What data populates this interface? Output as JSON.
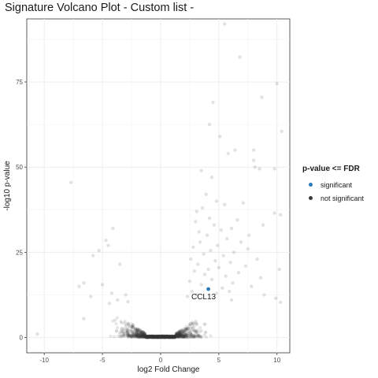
{
  "chart_data": {
    "type": "scatter",
    "title": "Signature Volcano Plot - Custom list -",
    "xlabel": "log2 Fold Change",
    "ylabel": "-log10 p-value",
    "xlim": [
      -11.5,
      11.1
    ],
    "ylim": [
      -4.5,
      93.5
    ],
    "xticks": [
      -10,
      -5,
      0,
      5,
      10
    ],
    "xtick_labels": [
      "-10",
      "-5",
      "0",
      "5",
      "10"
    ],
    "yticks": [
      0,
      25,
      50,
      75
    ],
    "ytick_labels": [
      "0",
      "25",
      "50",
      "75"
    ],
    "grid": true,
    "legend": {
      "title": "p-value <= FDR",
      "placement": "right",
      "entries": [
        {
          "label": "significant",
          "color": "#2b7bba"
        },
        {
          "label": "not significant",
          "color": "#3a3a3a"
        }
      ]
    },
    "series": [
      {
        "name": "significant",
        "color": "#2b7bba",
        "points": [
          {
            "x": 4.1,
            "y": 14.2,
            "label": "CCL13"
          }
        ]
      },
      {
        "name": "not significant",
        "color": "#3a3a3a",
        "points": [
          {
            "x": 5.5,
            "y": 92
          },
          {
            "x": 6.8,
            "y": 82.3
          },
          {
            "x": 10.0,
            "y": 74.5
          },
          {
            "x": 8.7,
            "y": 70.5
          },
          {
            "x": 4.5,
            "y": 69
          },
          {
            "x": 4.2,
            "y": 62.5
          },
          {
            "x": 10.4,
            "y": 60.5
          },
          {
            "x": 5.1,
            "y": 59
          },
          {
            "x": 8.0,
            "y": 55
          },
          {
            "x": 6.4,
            "y": 55
          },
          {
            "x": 5.8,
            "y": 54
          },
          {
            "x": 8.0,
            "y": 52
          },
          {
            "x": 8.1,
            "y": 50
          },
          {
            "x": 8.5,
            "y": 49.5
          },
          {
            "x": 9.8,
            "y": 49.5
          },
          {
            "x": 3.5,
            "y": 49
          },
          {
            "x": 4.4,
            "y": 47
          },
          {
            "x": -7.7,
            "y": 45.5
          },
          {
            "x": 3.9,
            "y": 42
          },
          {
            "x": 4.8,
            "y": 40
          },
          {
            "x": 7.1,
            "y": 39.5
          },
          {
            "x": 5.5,
            "y": 39
          },
          {
            "x": 3.6,
            "y": 38
          },
          {
            "x": 3.1,
            "y": 37
          },
          {
            "x": 9.8,
            "y": 36.5
          },
          {
            "x": 10.3,
            "y": 36
          },
          {
            "x": 4.2,
            "y": 35
          },
          {
            "x": 6.6,
            "y": 34.5
          },
          {
            "x": 3.0,
            "y": 34
          },
          {
            "x": 8.8,
            "y": 33
          },
          {
            "x": 4.6,
            "y": 33
          },
          {
            "x": 6.1,
            "y": 32
          },
          {
            "x": 5.2,
            "y": 31.5
          },
          {
            "x": 3.3,
            "y": 31
          },
          {
            "x": 7.6,
            "y": 30
          },
          {
            "x": 4.0,
            "y": 30
          },
          {
            "x": 5.7,
            "y": 29
          },
          {
            "x": 6.9,
            "y": 28
          },
          {
            "x": 3.4,
            "y": 28
          },
          {
            "x": 4.9,
            "y": 27
          },
          {
            "x": 2.8,
            "y": 26.5
          },
          {
            "x": 7.5,
            "y": 26
          },
          {
            "x": 4.3,
            "y": 25.5
          },
          {
            "x": 6.3,
            "y": 25
          },
          {
            "x": 3.7,
            "y": 24.5
          },
          {
            "x": 5.4,
            "y": 24
          },
          {
            "x": 8.3,
            "y": 23
          },
          {
            "x": 2.6,
            "y": 23
          },
          {
            "x": 4.7,
            "y": 22.5
          },
          {
            "x": 6.0,
            "y": 22
          },
          {
            "x": 3.2,
            "y": 21.5
          },
          {
            "x": 7.3,
            "y": 21
          },
          {
            "x": 5.0,
            "y": 20.5
          },
          {
            "x": 4.1,
            "y": 20
          },
          {
            "x": 10.2,
            "y": 20
          },
          {
            "x": 2.9,
            "y": 19.5
          },
          {
            "x": 6.7,
            "y": 19
          },
          {
            "x": 3.8,
            "y": 18.5
          },
          {
            "x": 5.6,
            "y": 18
          },
          {
            "x": 8.6,
            "y": 17.5
          },
          {
            "x": 4.4,
            "y": 17
          },
          {
            "x": 2.5,
            "y": 16.5
          },
          {
            "x": 6.2,
            "y": 16
          },
          {
            "x": 3.5,
            "y": 15.5
          },
          {
            "x": 7.8,
            "y": 15
          },
          {
            "x": 5.3,
            "y": 14.5
          },
          {
            "x": 2.7,
            "y": 13.5
          },
          {
            "x": 4.8,
            "y": 13
          },
          {
            "x": 3.1,
            "y": 12.5
          },
          {
            "x": 9.9,
            "y": 11.5
          },
          {
            "x": 10.3,
            "y": 10.3
          },
          {
            "x": 6.1,
            "y": 11
          },
          {
            "x": 2.3,
            "y": 12
          },
          {
            "x": 8.9,
            "y": 12.5
          },
          {
            "x": 5.9,
            "y": 13.5
          },
          {
            "x": -4.1,
            "y": 32
          },
          {
            "x": -4.7,
            "y": 28.5
          },
          {
            "x": -4.5,
            "y": 27
          },
          {
            "x": -5.3,
            "y": 25.5
          },
          {
            "x": -5.8,
            "y": 24
          },
          {
            "x": -3.5,
            "y": 21.5
          },
          {
            "x": -6.6,
            "y": 16
          },
          {
            "x": -5.0,
            "y": 15.5
          },
          {
            "x": -7.0,
            "y": 15
          },
          {
            "x": -4.2,
            "y": 13
          },
          {
            "x": -3.0,
            "y": 12.5
          },
          {
            "x": -6.0,
            "y": 12
          },
          {
            "x": -3.7,
            "y": 11
          },
          {
            "x": -2.8,
            "y": 10.5
          },
          {
            "x": -4.4,
            "y": 10
          },
          {
            "x": -6.6,
            "y": 5.5
          },
          {
            "x": -10.6,
            "y": 1
          }
        ],
        "cloud": {
          "count": 1400,
          "x_range": [
            -5.5,
            5.5
          ],
          "note": "dense cluster of non-significant genes near y = 0"
        }
      }
    ]
  }
}
